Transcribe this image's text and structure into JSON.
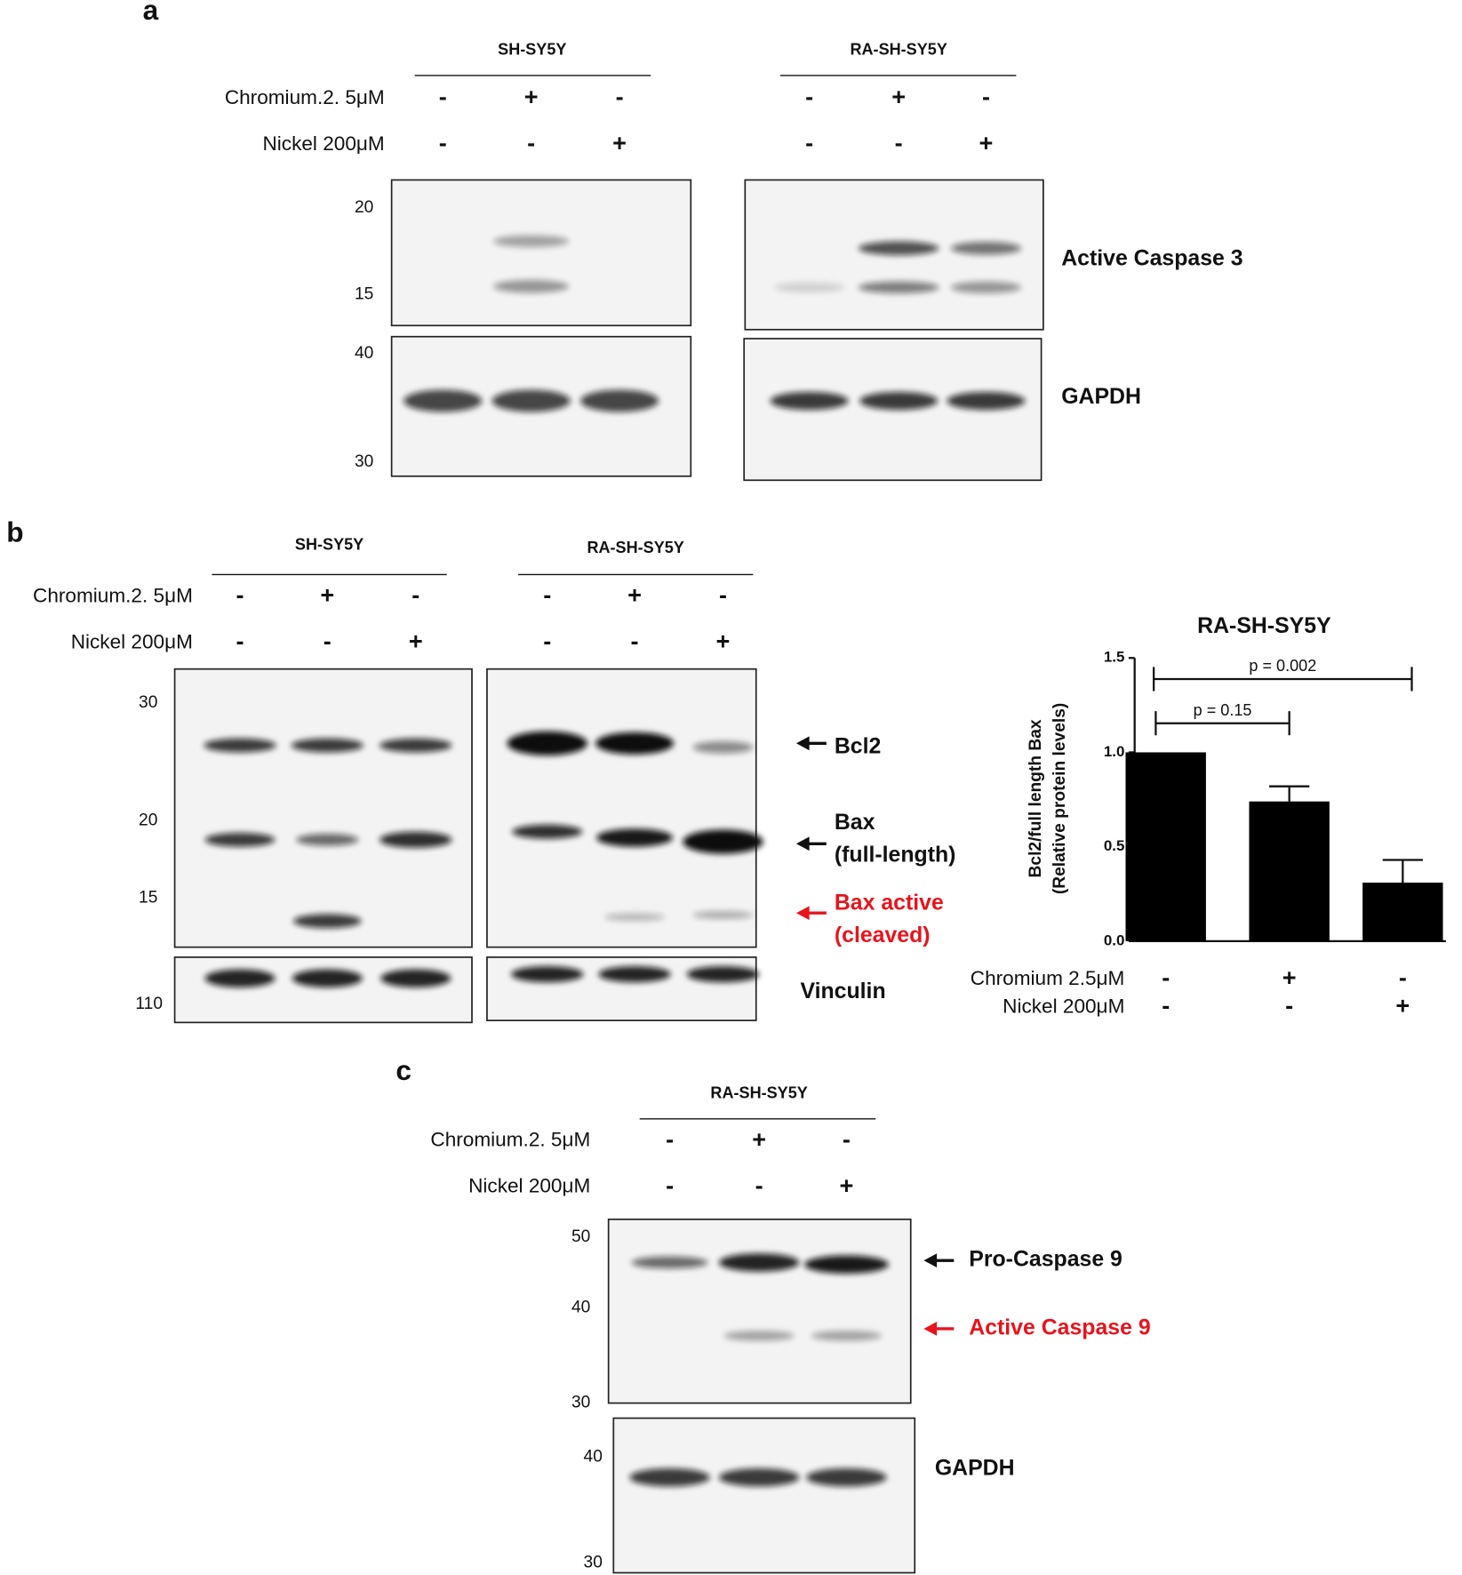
{
  "panel_a": {
    "label": "a",
    "treatments": [
      "Chromium.2. 5μM",
      "Nickel 200μM"
    ],
    "groups": [
      {
        "name": "SH-SY5Y",
        "signs": [
          [
            "-",
            "+",
            "-"
          ],
          [
            "-",
            "-",
            "+"
          ]
        ]
      },
      {
        "name": "RA-SH-SY5Y",
        "signs": [
          [
            "-",
            "+",
            "-"
          ],
          [
            "-",
            "-",
            "+"
          ]
        ]
      }
    ],
    "blots": [
      {
        "protein": "Active Caspase 3",
        "markers": [
          "20",
          "15"
        ]
      },
      {
        "protein": "GAPDH",
        "markers": [
          "40",
          "30"
        ]
      }
    ]
  },
  "panel_b": {
    "label": "b",
    "treatments": [
      "Chromium.2. 5μM",
      "Nickel 200μM"
    ],
    "groups": [
      {
        "name": "SH-SY5Y",
        "signs": [
          [
            "-",
            "+",
            "-"
          ],
          [
            "-",
            "-",
            "+"
          ]
        ]
      },
      {
        "name": "RA-SH-SY5Y",
        "signs": [
          [
            "-",
            "+",
            "-"
          ],
          [
            "-",
            "-",
            "+"
          ]
        ]
      }
    ],
    "blots": [
      {
        "markers": [
          "30",
          "20",
          "15"
        ],
        "proteins": [
          "Bcl2",
          "Bax",
          "(full-length)",
          "Bax active",
          "(cleaved)"
        ]
      },
      {
        "markers": [
          "110"
        ],
        "proteins": [
          "Vinculin"
        ]
      }
    ]
  },
  "chart_data": {
    "type": "bar",
    "title": "RA-SH-SY5Y",
    "ylabel": [
      "Bcl2/full length Bax",
      "(Relative protein levels)"
    ],
    "categories": [
      null,
      null,
      null
    ],
    "values": [
      1.0,
      0.74,
      0.31
    ],
    "errors": [
      null,
      0.08,
      0.12
    ],
    "color": "#000000",
    "ylim": [
      0,
      1.5
    ],
    "yticks": [
      {
        "value": 0,
        "label": "0.0"
      },
      {
        "value": 0.5,
        "label": "0.5"
      },
      {
        "value": 1,
        "label": "1.0"
      },
      {
        "value": 1.5,
        "label": "1.5"
      }
    ],
    "annotations": [
      "p = 0.15",
      "p = 0.002"
    ],
    "treatments": [
      {
        "label": "Chromium 2.5μM",
        "signs": [
          "-",
          "+",
          "-"
        ]
      },
      {
        "label": "Nickel 200μM",
        "signs": [
          "-",
          "-",
          "+"
        ]
      }
    ]
  },
  "panel_c": {
    "label": "c",
    "treatments": [
      "Chromium.2. 5μM",
      "Nickel 200μM"
    ],
    "groups": [
      {
        "name": "RA-SH-SY5Y",
        "signs": [
          [
            "-",
            "+",
            "-"
          ],
          [
            "-",
            "-",
            "+"
          ]
        ]
      }
    ],
    "blots": [
      {
        "proteins": [
          "Pro-Caspase 9",
          "Active Caspase 9"
        ],
        "markers": [
          "50",
          "40",
          "30"
        ]
      },
      {
        "protein": "GAPDH",
        "markers": [
          "40",
          "30"
        ]
      }
    ]
  }
}
